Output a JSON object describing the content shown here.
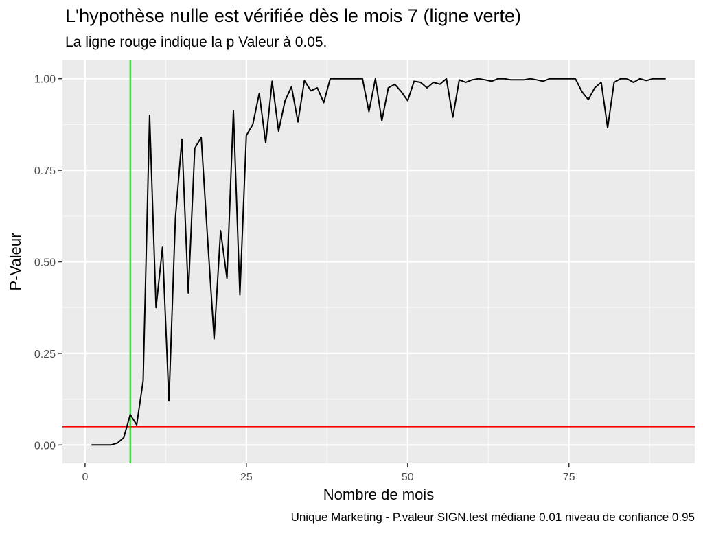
{
  "chart_data": {
    "type": "line",
    "title": "L'hypothèse nulle est vérifiée dès le mois 7 (ligne verte)",
    "subtitle": "La ligne rouge indique la p Valeur à 0.05.",
    "caption": "Unique Marketing - P.valeur SIGN.test médiane  0.01  niveau de confiance  0.95",
    "xlabel": "Nombre de mois",
    "ylabel": "P-Valeur",
    "xlim": [
      -3.5,
      94.5
    ],
    "ylim": [
      -0.05,
      1.05
    ],
    "x_ticks": [
      0,
      25,
      50,
      75
    ],
    "x_tick_labels": [
      "0",
      "25",
      "50",
      "75"
    ],
    "y_ticks": [
      0,
      0.25,
      0.5,
      0.75,
      1.0
    ],
    "y_tick_labels": [
      "0.00",
      "0.25",
      "0.50",
      "0.75",
      "1.00"
    ],
    "grid": true,
    "background": "#ebebeb",
    "series": [
      {
        "color": "#000000",
        "x": [
          1,
          2,
          3,
          4,
          5,
          6,
          7,
          8,
          9,
          10,
          11,
          12,
          13,
          14,
          15,
          16,
          17,
          18,
          19,
          20,
          21,
          22,
          23,
          24,
          25,
          26,
          27,
          28,
          29,
          30,
          31,
          32,
          33,
          34,
          35,
          36,
          37,
          38,
          39,
          40,
          41,
          42,
          43,
          44,
          45,
          46,
          47,
          48,
          49,
          50,
          51,
          52,
          53,
          54,
          55,
          56,
          57,
          58,
          59,
          60,
          61,
          62,
          63,
          64,
          65,
          66,
          67,
          68,
          69,
          70,
          71,
          72,
          73,
          74,
          75,
          76,
          77,
          78,
          79,
          80,
          81,
          82,
          83,
          84,
          85,
          86,
          87,
          88,
          89,
          90
        ],
        "values": [
          0.0,
          0.0,
          0.0,
          0.0,
          0.005,
          0.02,
          0.083,
          0.055,
          0.175,
          0.9,
          0.375,
          0.54,
          0.12,
          0.62,
          0.835,
          0.415,
          0.81,
          0.84,
          0.56,
          0.29,
          0.585,
          0.455,
          0.912,
          0.41,
          0.845,
          0.875,
          0.96,
          0.825,
          0.993,
          0.857,
          0.94,
          0.978,
          0.882,
          0.995,
          0.967,
          0.975,
          0.935,
          1.0,
          1.0,
          1.0,
          1.0,
          1.0,
          1.0,
          0.91,
          1.0,
          0.885,
          0.975,
          0.985,
          0.965,
          0.94,
          0.993,
          0.99,
          0.975,
          0.99,
          0.985,
          1.0,
          0.895,
          0.997,
          0.99,
          0.997,
          1.0,
          0.997,
          0.993,
          1.0,
          1.0,
          0.997,
          0.997,
          0.997,
          1.0,
          0.997,
          0.993,
          1.0,
          1.0,
          1.0,
          1.0,
          1.0,
          0.965,
          0.943,
          0.975,
          0.99,
          0.866,
          0.99,
          1.0,
          1.0,
          0.99,
          1.0,
          0.995,
          1.0,
          1.0,
          1.0
        ]
      }
    ],
    "reference_lines": [
      {
        "orientation": "horizontal",
        "value": 0.05,
        "color": "#ff0000"
      },
      {
        "orientation": "vertical",
        "value": 7,
        "color": "#00cc00"
      }
    ]
  }
}
